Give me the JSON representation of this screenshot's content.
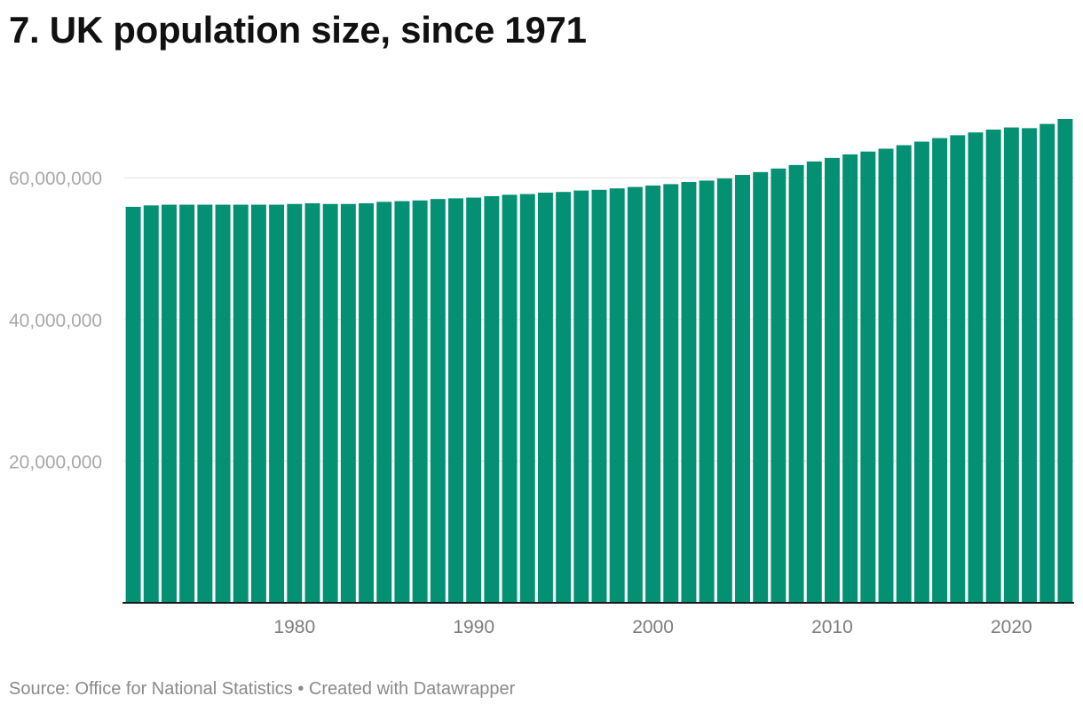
{
  "title": "7. UK population size, since 1971",
  "footer": {
    "source": "Source: Office for National Statistics",
    "separator": " • ",
    "credit": "Created with Datawrapper"
  },
  "colors": {
    "bar": "#039073",
    "grid": "#e2e2e2",
    "axis": "#1a1a1a"
  },
  "chart_data": {
    "type": "bar",
    "title": "7. UK population size, since 1971",
    "xlabel": "",
    "ylabel": "",
    "x": [
      1971,
      1972,
      1973,
      1974,
      1975,
      1976,
      1977,
      1978,
      1979,
      1980,
      1981,
      1982,
      1983,
      1984,
      1985,
      1986,
      1987,
      1988,
      1989,
      1990,
      1991,
      1992,
      1993,
      1994,
      1995,
      1996,
      1997,
      1998,
      1999,
      2000,
      2001,
      2002,
      2003,
      2004,
      2005,
      2006,
      2007,
      2008,
      2009,
      2010,
      2011,
      2012,
      2013,
      2014,
      2015,
      2016,
      2017,
      2018,
      2019,
      2020,
      2021,
      2022,
      2023
    ],
    "values": [
      55900000,
      56100000,
      56200000,
      56200000,
      56200000,
      56200000,
      56200000,
      56200000,
      56200000,
      56300000,
      56400000,
      56300000,
      56300000,
      56400000,
      56600000,
      56700000,
      56800000,
      57000000,
      57100000,
      57200000,
      57400000,
      57600000,
      57700000,
      57900000,
      58000000,
      58200000,
      58300000,
      58500000,
      58700000,
      58900000,
      59100000,
      59400000,
      59600000,
      59900000,
      60400000,
      60800000,
      61300000,
      61800000,
      62300000,
      62800000,
      63300000,
      63700000,
      64100000,
      64600000,
      65100000,
      65600000,
      66000000,
      66400000,
      66800000,
      67100000,
      67000000,
      67600000,
      68300000
    ],
    "ylim": [
      0,
      68300000
    ],
    "y_ticks": [
      20000000,
      40000000,
      60000000
    ],
    "y_tick_labels": [
      "20,000,000",
      "40,000,000",
      "60,000,000"
    ],
    "x_ticks": [
      1980,
      1990,
      2000,
      2010,
      2020
    ],
    "x_tick_labels": [
      "1980",
      "1990",
      "2000",
      "2010",
      "2020"
    ],
    "grid": true
  }
}
